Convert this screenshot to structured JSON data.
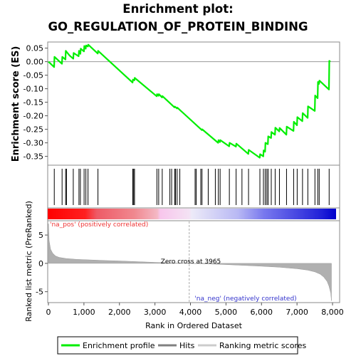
{
  "titles": {
    "line1": "Enrichment plot:",
    "line2": "GO_REGULATION_OF_PROTEIN_BINDING"
  },
  "colors": {
    "enrichment": "#00ee00",
    "hits": "#000000",
    "metric": "#b0b0b0",
    "pos_label": "#ee3333",
    "neg_label": "#3333cc"
  },
  "chart_data": [
    {
      "type": "line",
      "panel": "enrichment",
      "ylabel": "Enrichment score (ES)",
      "xlim": [
        0,
        8200
      ],
      "ylim": [
        -0.38,
        0.07
      ],
      "yticks": [
        0.05,
        0.0,
        -0.05,
        -0.1,
        -0.15,
        -0.2,
        -0.25,
        -0.3,
        -0.35
      ],
      "ytick_labels": [
        "0.05",
        "0.00",
        "-0.05",
        "-0.10",
        "-0.15",
        "-0.20",
        "-0.25",
        "-0.30",
        "-0.35"
      ],
      "grid": false,
      "series": [
        {
          "name": "Enrichment profile",
          "color": "#00ee00",
          "x": [
            0,
            160,
            170,
            380,
            390,
            480,
            490,
            600,
            700,
            710,
            850,
            860,
            900,
            910,
            1000,
            1010,
            1050,
            1060,
            1110,
            1120,
            1390,
            1400,
            2370,
            2380,
            2420,
            2430,
            3050,
            3060,
            3100,
            3110,
            3200,
            3210,
            3550,
            3560,
            3620,
            3630,
            4320,
            4330,
            4780,
            4790,
            4830,
            4840,
            5090,
            5100,
            5280,
            5290,
            5630,
            5640,
            5950,
            5960,
            6050,
            6060,
            6100,
            6110,
            6180,
            6190,
            6270,
            6280,
            6380,
            6390,
            6500,
            6510,
            6700,
            6710,
            6900,
            6910,
            7000,
            7010,
            7150,
            7160,
            7300,
            7310,
            7500,
            7510,
            7580,
            7590,
            7620,
            7630,
            7900,
            7910,
            7940
          ],
          "y": [
            0.0,
            -0.02,
            0.018,
            -0.008,
            0.018,
            0.008,
            0.04,
            0.022,
            0.011,
            0.032,
            0.02,
            0.04,
            0.029,
            0.048,
            0.038,
            0.058,
            0.048,
            0.06,
            0.056,
            0.063,
            0.03,
            0.04,
            -0.077,
            -0.066,
            -0.069,
            -0.06,
            -0.128,
            -0.12,
            -0.126,
            -0.12,
            -0.132,
            -0.127,
            -0.169,
            -0.166,
            -0.173,
            -0.17,
            -0.253,
            -0.25,
            -0.3,
            -0.29,
            -0.297,
            -0.29,
            -0.313,
            -0.3,
            -0.314,
            -0.303,
            -0.341,
            -0.326,
            -0.355,
            -0.342,
            -0.35,
            -0.328,
            -0.333,
            -0.3,
            -0.305,
            -0.276,
            -0.282,
            -0.26,
            -0.27,
            -0.244,
            -0.258,
            -0.245,
            -0.27,
            -0.24,
            -0.256,
            -0.222,
            -0.235,
            -0.205,
            -0.22,
            -0.19,
            -0.208,
            -0.165,
            -0.182,
            -0.125,
            -0.135,
            -0.075,
            -0.082,
            -0.07,
            -0.103,
            0.003,
            0.0
          ]
        }
      ]
    },
    {
      "type": "scatter",
      "panel": "hits",
      "name": "Hits",
      "xlim": [
        0,
        8200
      ],
      "x": [
        165,
        385,
        485,
        510,
        700,
        860,
        900,
        1005,
        1055,
        1115,
        1395,
        2375,
        2400,
        2425,
        3055,
        3105,
        3205,
        3420,
        3470,
        3555,
        3580,
        3625,
        3700,
        4130,
        4160,
        4290,
        4325,
        4500,
        4700,
        4785,
        4835,
        5095,
        5285,
        5450,
        5635,
        5955,
        6055,
        6105,
        6150,
        6185,
        6275,
        6385,
        6505,
        6705,
        6905,
        7005,
        7155,
        7305,
        7505,
        7585,
        7625,
        7905
      ]
    },
    {
      "type": "area",
      "panel": "ranked_metric",
      "name": "Ranking metric scores",
      "xlabel": "Rank in Ordered Dataset",
      "ylabel": "Ranked list metric (PreRanked)",
      "xlim": [
        0,
        8200
      ],
      "ylim": [
        -6.8,
        7.4
      ],
      "xticks": [
        0,
        1000,
        2000,
        3000,
        4000,
        5000,
        6000,
        7000,
        8000
      ],
      "xtick_labels": [
        "0",
        "1,000",
        "2,000",
        "3,000",
        "4,000",
        "5,000",
        "6,000",
        "7,000",
        "8,000"
      ],
      "yticks": [
        5,
        0,
        -5
      ],
      "ytick_labels": [
        "5",
        "0",
        "-5"
      ],
      "x": [
        0,
        20,
        60,
        120,
        200,
        300,
        500,
        800,
        1200,
        1600,
        2000,
        2500,
        3000,
        3500,
        3965,
        4500,
        5000,
        5500,
        6000,
        6500,
        7000,
        7300,
        7500,
        7650,
        7750,
        7850,
        7900,
        7950,
        7970
      ],
      "y": [
        7.0,
        4.0,
        2.5,
        1.8,
        1.3,
        1.05,
        0.85,
        0.7,
        0.6,
        0.5,
        0.42,
        0.3,
        0.18,
        0.08,
        0.0,
        -0.1,
        -0.22,
        -0.35,
        -0.5,
        -0.68,
        -0.95,
        -1.2,
        -1.5,
        -1.9,
        -2.4,
        -3.2,
        -4.0,
        -5.2,
        -6.6
      ],
      "zero_cross": 3965,
      "annotations": {
        "zero_cross_label": "Zero cross at 3965",
        "pos_label": "'na_pos' (positively correlated)",
        "neg_label": "'na_neg' (negatively correlated)"
      }
    }
  ],
  "legend": {
    "placement": "bottom",
    "items": [
      {
        "label": "Enrichment profile",
        "color": "#00ee00"
      },
      {
        "label": "Hits",
        "color": "#808080"
      },
      {
        "label": "Ranking metric scores",
        "color": "#cccccc"
      }
    ]
  }
}
